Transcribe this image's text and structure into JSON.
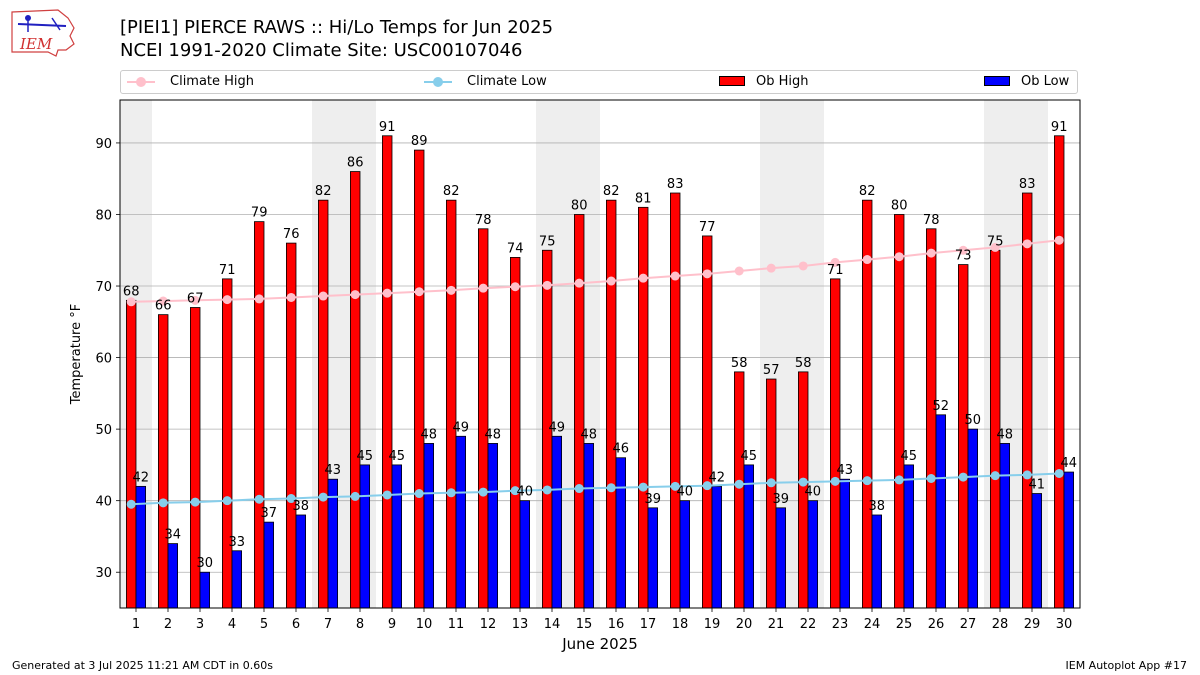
{
  "header": {
    "title_line1": "[PIEI1] PIERCE RAWS :: Hi/Lo Temps for Jun 2025",
    "title_line2": "NCEI 1991-2020 Climate Site: USC00107046",
    "logo_text": "IEM"
  },
  "footer": {
    "left": "Generated at 3 Jul 2025 11:21 AM CDT in 0.60s",
    "right": "IEM Autoplot App #17"
  },
  "legend": {
    "placement": "top, above plot",
    "items": [
      "Climate High",
      "Climate Low",
      "Ob High",
      "Ob Low"
    ]
  },
  "colors": {
    "ob_high": "#ff0000",
    "ob_low": "#0000ff",
    "climate_high": "#ffc0cb",
    "climate_low": "#87ceeb",
    "weekend_band": "#eeeeee",
    "grid": "#b0b0b0"
  },
  "chart_data": {
    "type": "bar",
    "xlabel": "June 2025",
    "ylabel": "Temperature °F",
    "ylim": [
      25,
      96
    ],
    "yticks": [
      30,
      40,
      50,
      60,
      70,
      80,
      90
    ],
    "grid": "horizontal",
    "categories": [
      "1",
      "2",
      "3",
      "4",
      "5",
      "6",
      "7",
      "8",
      "9",
      "10",
      "11",
      "12",
      "13",
      "14",
      "15",
      "16",
      "17",
      "18",
      "19",
      "20",
      "21",
      "22",
      "23",
      "24",
      "25",
      "26",
      "27",
      "28",
      "29",
      "30"
    ],
    "shaded_days": [
      "1",
      "7",
      "8",
      "14",
      "15",
      "21",
      "22",
      "28",
      "29"
    ],
    "series": [
      {
        "name": "Ob High",
        "kind": "bar",
        "values": [
          68,
          66,
          67,
          71,
          79,
          76,
          82,
          86,
          91,
          89,
          82,
          78,
          74,
          75,
          80,
          82,
          81,
          83,
          77,
          58,
          57,
          58,
          71,
          82,
          80,
          78,
          73,
          75,
          83,
          91
        ]
      },
      {
        "name": "Ob Low",
        "kind": "bar",
        "values": [
          42,
          34,
          30,
          33,
          37,
          38,
          43,
          45,
          45,
          48,
          49,
          48,
          40,
          49,
          48,
          46,
          39,
          40,
          42,
          45,
          39,
          40,
          43,
          38,
          45,
          52,
          50,
          48,
          41,
          44
        ]
      },
      {
        "name": "Climate High",
        "kind": "line",
        "values": [
          67.8,
          67.9,
          68.0,
          68.1,
          68.2,
          68.4,
          68.6,
          68.8,
          69.0,
          69.2,
          69.4,
          69.7,
          69.9,
          70.1,
          70.4,
          70.7,
          71.1,
          71.4,
          71.7,
          72.1,
          72.5,
          72.8,
          73.3,
          73.7,
          74.1,
          74.6,
          75.0,
          75.4,
          75.9,
          76.4
        ]
      },
      {
        "name": "Climate Low",
        "kind": "line",
        "values": [
          39.5,
          39.7,
          39.8,
          40.0,
          40.2,
          40.3,
          40.5,
          40.6,
          40.8,
          41.0,
          41.1,
          41.2,
          41.4,
          41.5,
          41.7,
          41.8,
          41.9,
          42.0,
          42.1,
          42.3,
          42.5,
          42.6,
          42.7,
          42.8,
          42.9,
          43.1,
          43.3,
          43.5,
          43.6,
          43.8
        ]
      }
    ]
  }
}
